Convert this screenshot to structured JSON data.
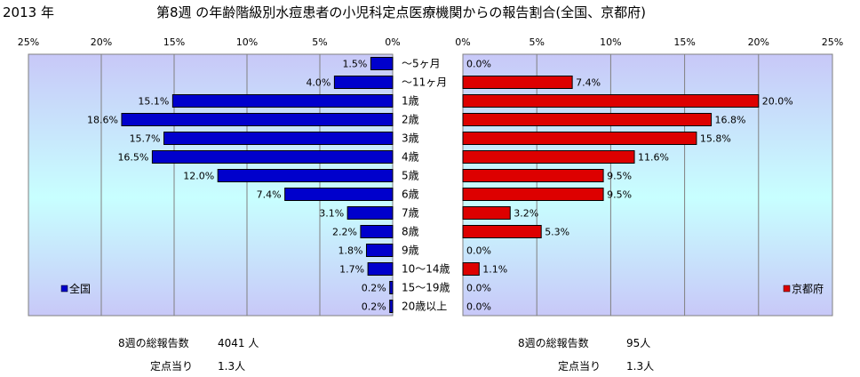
{
  "header": {
    "year": "2013 年",
    "title": "第8週 の年齢階級別水痘患者の小児科定点医療機関からの報告割合(全国、京都府)"
  },
  "chart_data": {
    "type": "bar",
    "orientation": "horizontal",
    "categories": [
      "～5ヶ月",
      "～11ヶ月",
      "1歳",
      "2歳",
      "3歳",
      "4歳",
      "5歳",
      "6歳",
      "7歳",
      "8歳",
      "9歳",
      "10～14歳",
      "15～19歳",
      "20歳以上"
    ],
    "series": [
      {
        "name": "全国",
        "color": "#0000cc",
        "values": [
          1.5,
          4.0,
          15.1,
          18.6,
          15.7,
          16.5,
          12.0,
          7.4,
          3.1,
          2.2,
          1.8,
          1.7,
          0.2,
          0.2
        ],
        "labels": [
          "1.5%",
          "4.0%",
          "15.1%",
          "18.6%",
          "15.7%",
          "16.5%",
          "12.0%",
          "7.4%",
          "3.1%",
          "2.2%",
          "1.8%",
          "1.7%",
          "0.2%",
          "0.2%"
        ]
      },
      {
        "name": "京都府",
        "color": "#dd0000",
        "values": [
          0.0,
          7.4,
          20.0,
          16.8,
          15.8,
          11.6,
          9.5,
          9.5,
          3.2,
          5.3,
          0.0,
          1.1,
          0.0,
          0.0
        ],
        "labels": [
          "0.0%",
          "7.4%",
          "20.0%",
          "16.8%",
          "15.8%",
          "11.6%",
          "9.5%",
          "9.5%",
          "3.2%",
          "5.3%",
          "0.0%",
          "1.1%",
          "0.0%",
          "0.0%"
        ]
      }
    ],
    "left_axis_ticks": [
      "25%",
      "20%",
      "15%",
      "10%",
      "5%",
      "0%"
    ],
    "right_axis_ticks": [
      "0%",
      "5%",
      "10%",
      "15%",
      "20%",
      "25%"
    ],
    "xlim": [
      0,
      25
    ],
    "grid": true,
    "legend": {
      "left": "全国",
      "right": "京都府",
      "placement": "bottom"
    }
  },
  "summary": {
    "national": {
      "reports_label": "8週の総報告数",
      "reports_value": "4041 人",
      "per_site_label": "定点当り",
      "per_site_value": "1.3人"
    },
    "kyoto": {
      "reports_label": "8週の総報告数",
      "reports_value": "95人",
      "per_site_label": "定点当り",
      "per_site_value": "1.3人"
    }
  }
}
